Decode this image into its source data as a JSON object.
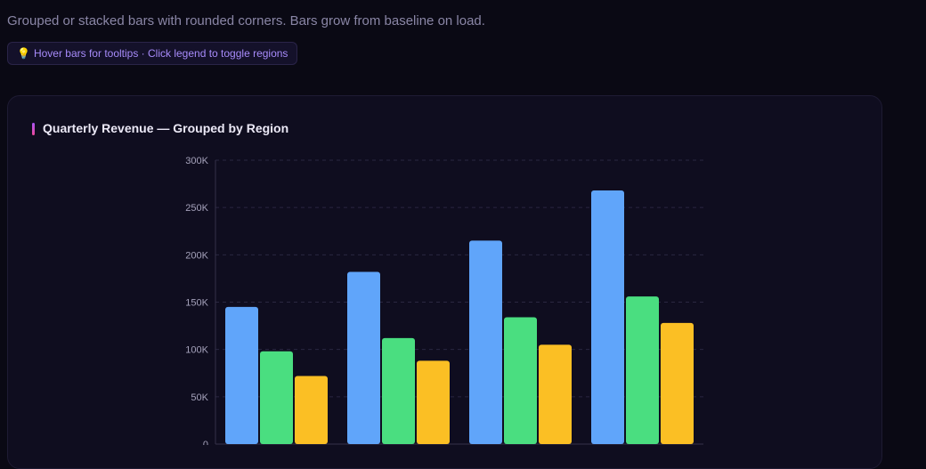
{
  "header": {
    "subtitle": "Grouped or stacked bars with rounded corners. Bars grow from baseline on load.",
    "hint_icon": "lightbulb-icon",
    "hint": "Hover bars for tooltips · Click legend to toggle regions"
  },
  "card": {
    "title": "Quarterly Revenue — Grouped by Region"
  },
  "chart_data": {
    "type": "bar",
    "title": "Quarterly Revenue — Grouped by Region",
    "mode": "grouped",
    "ylim": [
      0,
      300000
    ],
    "yticks": [
      0,
      50000,
      100000,
      150000,
      200000,
      250000,
      300000
    ],
    "ytick_labels": [
      "0",
      "50K",
      "100K",
      "150K",
      "200K",
      "250K",
      "300K"
    ],
    "grid": true,
    "series": [
      {
        "color": "#60a5fa",
        "values": [
          145000,
          182000,
          215000,
          268000
        ]
      },
      {
        "color": "#4ade80",
        "values": [
          98000,
          112000,
          134000,
          156000
        ]
      },
      {
        "color": "#fbbf24",
        "values": [
          72000,
          88000,
          105000,
          128000
        ]
      }
    ]
  }
}
